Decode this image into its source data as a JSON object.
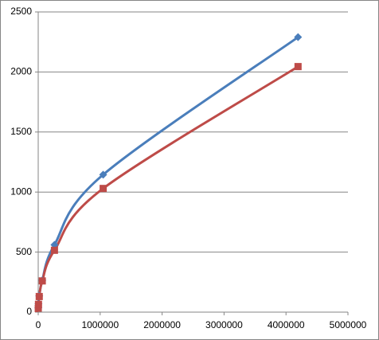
{
  "chart_data": {
    "type": "scatter",
    "smooth": true,
    "x": [
      1024,
      4096,
      16384,
      65536,
      262144,
      1048576,
      4194304
    ],
    "series": [
      {
        "color": "#4a7ebb",
        "marker": "diamond",
        "values": [
          35,
          70,
          135,
          265,
          560,
          1145,
          2290
        ]
      },
      {
        "color": "#be4b48",
        "marker": "square",
        "values": [
          30,
          65,
          130,
          260,
          515,
          1030,
          2045
        ]
      }
    ],
    "xlim": [
      0,
      5000000
    ],
    "xticks": [
      0,
      1000000,
      2000000,
      3000000,
      4000000,
      5000000
    ],
    "ylim": [
      0,
      2500
    ],
    "yticks": [
      0,
      500,
      1000,
      1500,
      2000,
      2500
    ],
    "grid": true
  }
}
